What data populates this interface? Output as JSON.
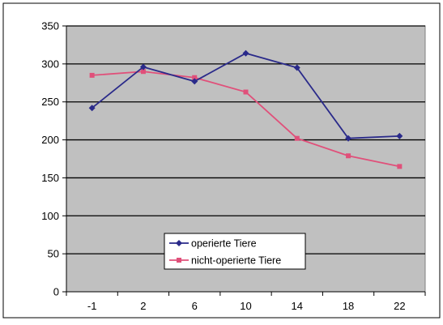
{
  "chart_data": {
    "type": "line",
    "categories": [
      "-1",
      "2",
      "6",
      "10",
      "14",
      "18",
      "22"
    ],
    "series": [
      {
        "name": "operierte Tiere",
        "values": [
          242,
          296,
          277,
          314,
          295,
          202,
          205
        ],
        "color": "#2a2a8a",
        "marker": "diamond"
      },
      {
        "name": "nicht-operierte Tiere",
        "values": [
          285,
          290,
          282,
          263,
          202,
          179,
          165
        ],
        "color": "#e0507a",
        "marker": "square"
      }
    ],
    "yticks": [
      "0",
      "50",
      "100",
      "150",
      "200",
      "250",
      "300",
      "350"
    ],
    "ylim": [
      0,
      350
    ],
    "grid": true,
    "legend_position": "bottom-center",
    "plot_background": "#c0c0c0"
  }
}
